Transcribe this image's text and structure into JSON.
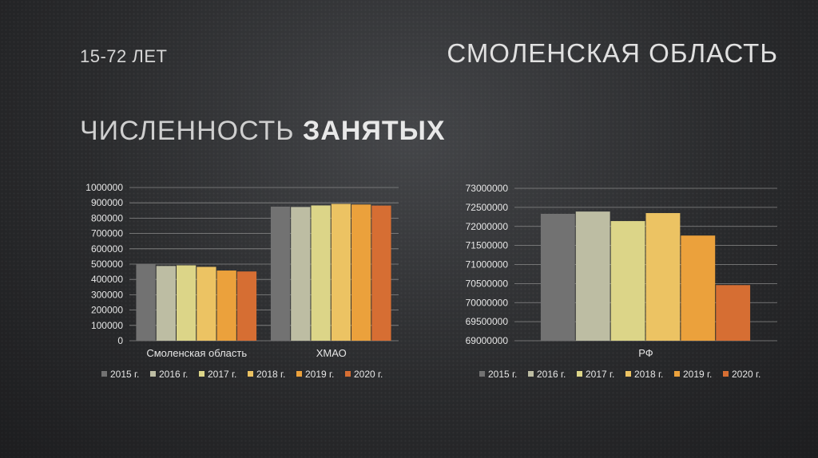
{
  "header": {
    "age_range": "15-72 ЛЕТ",
    "region": "СМОЛЕНСКАЯ ОБЛАСТЬ",
    "title_regular": "ЧИСЛЕННОСТЬ",
    "title_bold": "ЗАНЯТЫХ"
  },
  "colors": {
    "2015": "#727272",
    "2016": "#bdbda3",
    "2017": "#dcd588",
    "2018": "#ecc363",
    "2019": "#eba13c",
    "2020": "#d66e33"
  },
  "chart_data": [
    {
      "type": "bar",
      "categories": [
        "Смоленская область",
        "ХМАО"
      ],
      "series": [
        {
          "name": "2015 г.",
          "values": [
            500000,
            875000
          ]
        },
        {
          "name": "2016 г.",
          "values": [
            488000,
            873000
          ]
        },
        {
          "name": "2017 г.",
          "values": [
            492000,
            883000
          ]
        },
        {
          "name": "2018 г.",
          "values": [
            482000,
            893000
          ]
        },
        {
          "name": "2019 г.",
          "values": [
            458000,
            889000
          ]
        },
        {
          "name": "2020 г.",
          "values": [
            452000,
            882000
          ]
        }
      ],
      "ylim": [
        0,
        1000000
      ],
      "yticks": [
        "0",
        "100000",
        "200000",
        "300000",
        "400000",
        "500000",
        "600000",
        "700000",
        "800000",
        "900000",
        "1000000"
      ],
      "grid": true,
      "legend": "bottom"
    },
    {
      "type": "bar",
      "categories": [
        "РФ"
      ],
      "series": [
        {
          "name": "2015 г.",
          "values": [
            72330000
          ]
        },
        {
          "name": "2016 г.",
          "values": [
            72390000
          ]
        },
        {
          "name": "2017 г.",
          "values": [
            72140000
          ]
        },
        {
          "name": "2018 г.",
          "values": [
            72350000
          ]
        },
        {
          "name": "2019 г.",
          "values": [
            71760000
          ]
        },
        {
          "name": "2020 г.",
          "values": [
            70460000
          ]
        }
      ],
      "ylim": [
        69000000,
        73000000
      ],
      "yticks": [
        "69000000",
        "69500000",
        "70000000",
        "70500000",
        "71000000",
        "71500000",
        "72000000",
        "72500000",
        "73000000"
      ],
      "grid": true,
      "legend": "bottom"
    }
  ]
}
